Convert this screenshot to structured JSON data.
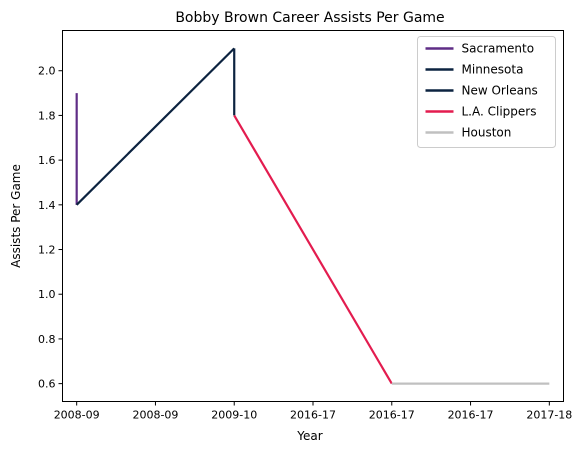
{
  "chart_data": {
    "type": "line",
    "title": "Bobby Brown  Career Assists Per Game",
    "xlabel": "Year",
    "ylabel": "Assists Per Game",
    "x_ticks": [
      "2008-09",
      "2008-09",
      "2009-10",
      "2016-17",
      "2016-17",
      "2016-17",
      "2017-18"
    ],
    "y_ticks": [
      "0.6",
      "0.8",
      "1.0",
      "1.2",
      "1.4",
      "1.6",
      "1.8",
      "2.0"
    ],
    "ylim": [
      0.52,
      2.18
    ],
    "xlim": [
      -0.18,
      6.18
    ],
    "grid": false,
    "legend_position": "top-right",
    "series": [
      {
        "name": "Sacramento",
        "color": "#5f2d86",
        "points": [
          [
            0,
            1.9
          ],
          [
            0,
            1.4
          ]
        ]
      },
      {
        "name": "Minnesota",
        "color": "#0c2340",
        "points": [
          [
            0,
            1.4
          ],
          [
            2,
            2.1
          ]
        ]
      },
      {
        "name": "New Orleans",
        "color": "#0c2340",
        "points": [
          [
            2,
            2.1
          ],
          [
            2,
            1.8
          ]
        ]
      },
      {
        "name": "L.A. Clippers",
        "color": "#e31c4f",
        "points": [
          [
            2,
            1.8
          ],
          [
            4,
            0.6
          ]
        ]
      },
      {
        "name": "Houston",
        "color": "#c0c0c0",
        "points": [
          [
            4,
            0.6
          ],
          [
            6,
            0.6
          ]
        ]
      }
    ]
  }
}
